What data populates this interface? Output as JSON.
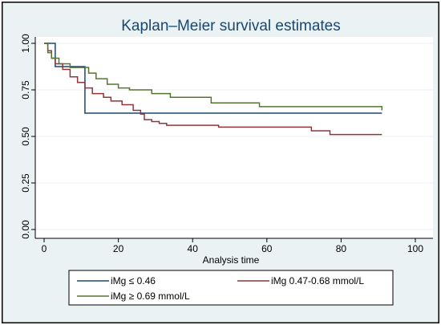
{
  "chart_data": {
    "type": "line",
    "title": "Kaplan–Meier survival estimates",
    "xlabel": "Analysis time",
    "ylabel": "",
    "xlim": [
      0,
      100
    ],
    "ylim": [
      0,
      1
    ],
    "xticks": [
      0,
      20,
      40,
      60,
      80,
      100
    ],
    "xtick_labels": [
      "0",
      "20",
      "40",
      "60",
      "80",
      "100"
    ],
    "yticks": [
      0,
      0.25,
      0.5,
      0.75,
      1
    ],
    "ytick_labels": [
      "0.00",
      "0.25",
      "0.50",
      "0.75",
      "1.00"
    ],
    "grid": true,
    "legend_position": "bottom",
    "series": [
      {
        "name": "iMg ≤ 0.46",
        "color": "#1a476f",
        "step": true,
        "x": [
          0,
          3,
          11,
          91
        ],
        "y": [
          1.0,
          0.875,
          0.625,
          0.625
        ]
      },
      {
        "name": "iMg 0.47-0.68 mmol/L",
        "color": "#90353b",
        "step": true,
        "x": [
          0,
          1,
          2,
          3,
          5,
          7,
          9,
          11,
          13,
          16,
          18,
          21,
          24,
          26,
          27,
          29,
          31,
          33,
          39,
          47,
          59,
          72,
          77,
          91
        ],
        "y": [
          1.0,
          0.96,
          0.92,
          0.89,
          0.86,
          0.82,
          0.79,
          0.76,
          0.73,
          0.71,
          0.69,
          0.67,
          0.64,
          0.62,
          0.59,
          0.58,
          0.57,
          0.56,
          0.56,
          0.55,
          0.55,
          0.53,
          0.51,
          0.51
        ]
      },
      {
        "name": "iMg ≥ 0.69 mmol/L",
        "color": "#55752f",
        "step": true,
        "x": [
          0,
          1,
          2,
          4,
          7,
          12,
          14,
          17,
          20,
          23,
          29,
          34,
          45,
          58,
          91
        ],
        "y": [
          1.0,
          0.95,
          0.92,
          0.89,
          0.87,
          0.84,
          0.81,
          0.78,
          0.76,
          0.75,
          0.73,
          0.71,
          0.68,
          0.66,
          0.64
        ]
      }
    ]
  }
}
